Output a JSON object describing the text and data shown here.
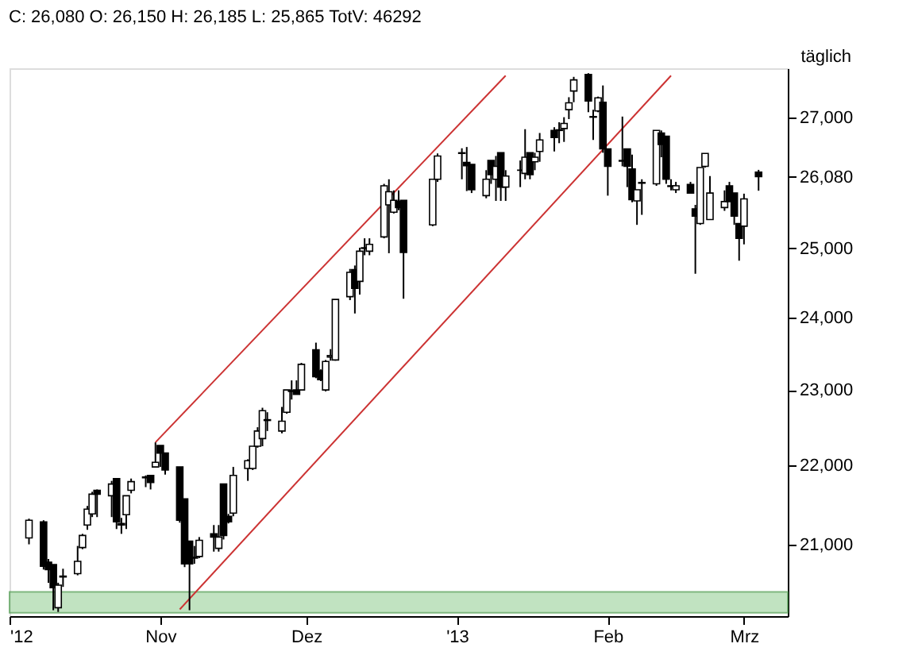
{
  "chart_data": {
    "type": "candlestick",
    "title": "C: 26,080 O: 26,150 H: 26,185 L: 25,865 TotV: 46292",
    "log": true,
    "grid": false,
    "ylim": [
      20130,
      27800
    ],
    "yticks": [
      {
        "value": 21000,
        "label": "21,000"
      },
      {
        "value": 22000,
        "label": "22,000"
      },
      {
        "value": 23000,
        "label": "23,000"
      },
      {
        "value": 24000,
        "label": "24,000"
      },
      {
        "value": 25000,
        "label": "25,000"
      },
      {
        "value": 26080,
        "label": "26,080"
      },
      {
        "value": 27000,
        "label": "27,000"
      }
    ],
    "xlim": [
      "2012-10-01",
      "2013-03-10"
    ],
    "xticks": [
      {
        "value": "2012-10-01",
        "label": "'12"
      },
      {
        "value": "2012-11-01",
        "label": "Nov"
      },
      {
        "value": "2012-12-01",
        "label": "Dez"
      },
      {
        "value": "2013-01-01",
        "label": "'13"
      },
      {
        "value": "2013-02-01",
        "label": "Feb"
      },
      {
        "value": "2013-03-01",
        "label": "Mrz"
      }
    ],
    "bands": [
      {
        "axis": "y",
        "from": 20170,
        "to": 20420,
        "color": "#a8d8a8"
      }
    ],
    "annotations": [
      "täglich"
    ],
    "series": [
      {
        "color": "#000000",
        "x": [
          "2012-10-05",
          "2012-10-08",
          "2012-10-09",
          "2012-10-10",
          "2012-10-11",
          "2012-10-12",
          "2012-10-15",
          "2012-10-16",
          "2012-10-17",
          "2012-10-18",
          "2012-10-19",
          "2012-10-22",
          "2012-10-23",
          "2012-10-24",
          "2012-10-25",
          "2012-10-26",
          "2012-10-29",
          "2012-10-30",
          "2012-10-31",
          "2012-11-01",
          "2012-11-02",
          "2012-11-05",
          "2012-11-06",
          "2012-11-07",
          "2012-11-08",
          "2012-11-09",
          "2012-11-12",
          "2012-11-13",
          "2012-11-14",
          "2012-11-15",
          "2012-11-16",
          "2012-11-19",
          "2012-11-20",
          "2012-11-21",
          "2012-11-22",
          "2012-11-23",
          "2012-11-26",
          "2012-11-27",
          "2012-11-28",
          "2012-11-29",
          "2012-11-30",
          "2012-12-03",
          "2012-12-04",
          "2012-12-05",
          "2012-12-06",
          "2012-12-07",
          "2012-12-10",
          "2012-12-11",
          "2012-12-12",
          "2012-12-13",
          "2012-12-14",
          "2012-12-17",
          "2012-12-18",
          "2012-12-19",
          "2012-12-20",
          "2012-12-21",
          "2012-12-27",
          "2012-12-28",
          "2013-01-02",
          "2013-01-03",
          "2013-01-04",
          "2013-01-07",
          "2013-01-08",
          "2013-01-09",
          "2013-01-10",
          "2013-01-11",
          "2013-01-14",
          "2013-01-15",
          "2013-01-16",
          "2013-01-17",
          "2013-01-18",
          "2013-01-21",
          "2013-01-22",
          "2013-01-23",
          "2013-01-24",
          "2013-01-25",
          "2013-01-28",
          "2013-01-29",
          "2013-01-30",
          "2013-01-31",
          "2013-02-01",
          "2013-02-04",
          "2013-02-05",
          "2013-02-06",
          "2013-02-07",
          "2013-02-08",
          "2013-02-11",
          "2013-02-12",
          "2013-02-13",
          "2013-02-14",
          "2013-02-15",
          "2013-02-18",
          "2013-02-19",
          "2013-02-20",
          "2013-02-21",
          "2013-02-22",
          "2013-02-25",
          "2013-02-26",
          "2013-02-27",
          "2013-02-28",
          "2013-03-01",
          "2013-03-04"
        ],
        "ohlc": [
          [
            21080,
            21320,
            21000,
            21300
          ],
          [
            21280,
            21300,
            20690,
            20730
          ],
          [
            20780,
            20820,
            20530,
            20690
          ],
          [
            20750,
            20750,
            20200,
            20470
          ],
          [
            20230,
            20530,
            20180,
            20500
          ],
          [
            20600,
            20700,
            20480,
            20610
          ],
          [
            20640,
            20980,
            20620,
            20790
          ],
          [
            20960,
            21130,
            20940,
            21110
          ],
          [
            21240,
            21480,
            21180,
            21440
          ],
          [
            21380,
            21660,
            21340,
            21630
          ],
          [
            21680,
            21690,
            21340,
            21630
          ],
          [
            21610,
            21800,
            21340,
            21760
          ],
          [
            21830,
            21830,
            21190,
            21280
          ],
          [
            21260,
            21330,
            21130,
            21240
          ],
          [
            21370,
            21610,
            21190,
            21610
          ],
          [
            21680,
            21830,
            21640,
            21790
          ],
          [
            21840,
            21870,
            21720,
            21850
          ],
          [
            21870,
            21870,
            21690,
            21780
          ],
          [
            21980,
            22300,
            21980,
            22040
          ],
          [
            22260,
            22260,
            21980,
            22160
          ],
          [
            22160,
            22160,
            21880,
            21940
          ],
          [
            21980,
            21980,
            21270,
            21300
          ],
          [
            21570,
            21570,
            20720,
            20760
          ],
          [
            21040,
            21040,
            20200,
            20760
          ],
          [
            20830,
            20980,
            20760,
            20840
          ],
          [
            20850,
            21090,
            20830,
            21050
          ],
          [
            21130,
            21240,
            20910,
            21090
          ],
          [
            20950,
            21240,
            20910,
            21090
          ],
          [
            21760,
            21760,
            21060,
            21110
          ],
          [
            21350,
            21380,
            21260,
            21280
          ],
          [
            21390,
            21980,
            21350,
            21870
          ],
          [
            21960,
            22080,
            21800,
            22060
          ],
          [
            21960,
            22250,
            21940,
            22250
          ],
          [
            22250,
            22500,
            22230,
            22450
          ],
          [
            22350,
            22760,
            22250,
            22720
          ],
          [
            22600,
            22700,
            22450,
            22590
          ],
          [
            22450,
            22770,
            22420,
            22580
          ],
          [
            22700,
            23000,
            22680,
            23000
          ],
          [
            22980,
            23130,
            22870,
            22990
          ],
          [
            23000,
            23130,
            22940,
            22940
          ],
          [
            23000,
            23370,
            23000,
            23350
          ],
          [
            23550,
            23650,
            23160,
            23180
          ],
          [
            23260,
            23280,
            23120,
            23140
          ],
          [
            23000,
            23410,
            22980,
            23390
          ],
          [
            23450,
            23560,
            23400,
            23470
          ],
          [
            23410,
            24260,
            23400,
            24260
          ],
          [
            24300,
            24700,
            24250,
            24650
          ],
          [
            24690,
            24750,
            24060,
            24420
          ],
          [
            24520,
            25010,
            24330,
            24960
          ],
          [
            25000,
            25150,
            24900,
            25010
          ],
          [
            24960,
            25150,
            24900,
            25060
          ],
          [
            25170,
            25970,
            25150,
            25940
          ],
          [
            25650,
            26040,
            24930,
            25850
          ],
          [
            25540,
            25870,
            25520,
            25720
          ],
          [
            25700,
            25870,
            25570,
            25610
          ],
          [
            25720,
            25720,
            24270,
            24940
          ],
          [
            25350,
            26040,
            25330,
            26040
          ],
          [
            26040,
            26440,
            26000,
            26400
          ],
          [
            26440,
            26520,
            26040,
            26450
          ],
          [
            26300,
            26540,
            25860,
            26250
          ],
          [
            26270,
            26270,
            25830,
            25880
          ],
          [
            25790,
            26180,
            25750,
            26040
          ],
          [
            26330,
            26330,
            25970,
            26110
          ],
          [
            26040,
            26400,
            25710,
            26240
          ],
          [
            26450,
            26450,
            25710,
            25920
          ],
          [
            25920,
            26180,
            25710,
            26090
          ],
          [
            26180,
            26330,
            25920,
            26180
          ],
          [
            26130,
            26820,
            26040,
            26380
          ],
          [
            26450,
            26450,
            26040,
            26110
          ],
          [
            26310,
            26450,
            26180,
            26380
          ],
          [
            26470,
            26760,
            26310,
            26650
          ],
          [
            26800,
            26850,
            26470,
            26690
          ],
          [
            26800,
            26930,
            26600,
            26810
          ],
          [
            26830,
            27010,
            26620,
            26910
          ],
          [
            27130,
            27330,
            26980,
            27240
          ],
          [
            27430,
            27660,
            27250,
            27610
          ],
          [
            27700,
            27720,
            27090,
            27270
          ],
          [
            27020,
            27130,
            26650,
            27010
          ],
          [
            27110,
            27340,
            27090,
            27320
          ],
          [
            27250,
            27520,
            26450,
            26510
          ],
          [
            26510,
            26510,
            25790,
            26240
          ],
          [
            26330,
            27020,
            26240,
            26320
          ],
          [
            26510,
            26510,
            25920,
            26240
          ],
          [
            26200,
            26420,
            25690,
            25730
          ],
          [
            25710,
            25880,
            25350,
            25880
          ],
          [
            25990,
            26040,
            25500,
            25980
          ],
          [
            25970,
            26800,
            25940,
            26800
          ],
          [
            26760,
            26800,
            26380,
            26580
          ],
          [
            26710,
            26710,
            25970,
            26040
          ],
          [
            25940,
            26040,
            25870,
            25930
          ],
          [
            25880,
            26000,
            25830,
            25940
          ],
          [
            25960,
            26000,
            25830,
            25830
          ],
          [
            25590,
            25650,
            24630,
            25480
          ],
          [
            25370,
            26220,
            25350,
            26220
          ],
          [
            26240,
            26440,
            26220,
            26440
          ],
          [
            25430,
            26090,
            25430,
            25830
          ],
          [
            25610,
            25870,
            25560,
            25700
          ],
          [
            25940,
            26000,
            25700,
            25700
          ],
          [
            25830,
            25830,
            25350,
            25480
          ],
          [
            25370,
            25370,
            24820,
            25150
          ],
          [
            25330,
            25820,
            25060,
            25740
          ],
          [
            26150,
            26185,
            25865,
            26080
          ]
        ]
      },
      {
        "type": "line",
        "color": "#cc3333",
        "x": [
          "2012-10-31",
          "2013-01-11"
        ],
        "values": [
          22300,
          27680
        ]
      },
      {
        "type": "line",
        "color": "#cc3333",
        "x": [
          "2012-11-05",
          "2013-02-14"
        ],
        "values": [
          20210,
          27680
        ]
      }
    ]
  }
}
